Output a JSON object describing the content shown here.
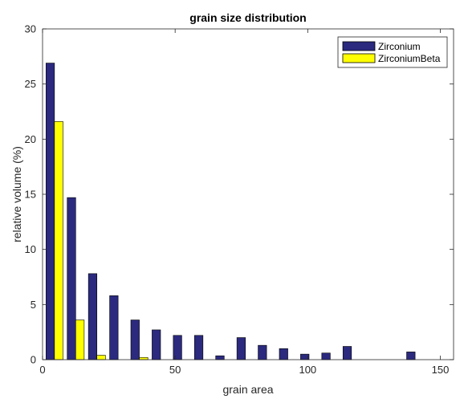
{
  "chart_data": {
    "type": "bar",
    "title": "grain size distribution",
    "xlabel": "grain area",
    "ylabel": "relative volume (%)",
    "xlim": [
      0,
      155
    ],
    "ylim": [
      0,
      30
    ],
    "xticks": [
      0,
      50,
      100,
      150
    ],
    "yticks": [
      0,
      5,
      10,
      15,
      20,
      25,
      30
    ],
    "legend_position": "top-right",
    "grid": false,
    "x": [
      4.5,
      12.5,
      20.5,
      28.5,
      36.5,
      44.5,
      52.5,
      60.5,
      68.5,
      76.5,
      84.5,
      92.5,
      100.5,
      108.5,
      116.5,
      124.5,
      132.5,
      140.5,
      148.5
    ],
    "series": [
      {
        "name": "Zirconium",
        "color": "#2b2a7f",
        "values": [
          26.9,
          14.7,
          7.8,
          5.8,
          3.6,
          2.7,
          2.2,
          2.2,
          0.35,
          2.0,
          1.3,
          1.0,
          0.5,
          0.6,
          1.2,
          0,
          0,
          0.7,
          0
        ]
      },
      {
        "name": "ZirconiumBeta",
        "color": "#ffff00",
        "values": [
          21.6,
          3.6,
          0.4,
          0,
          0.2,
          0,
          0,
          0,
          0,
          0,
          0,
          0,
          0,
          0,
          0,
          0,
          0,
          0,
          0
        ]
      }
    ]
  }
}
